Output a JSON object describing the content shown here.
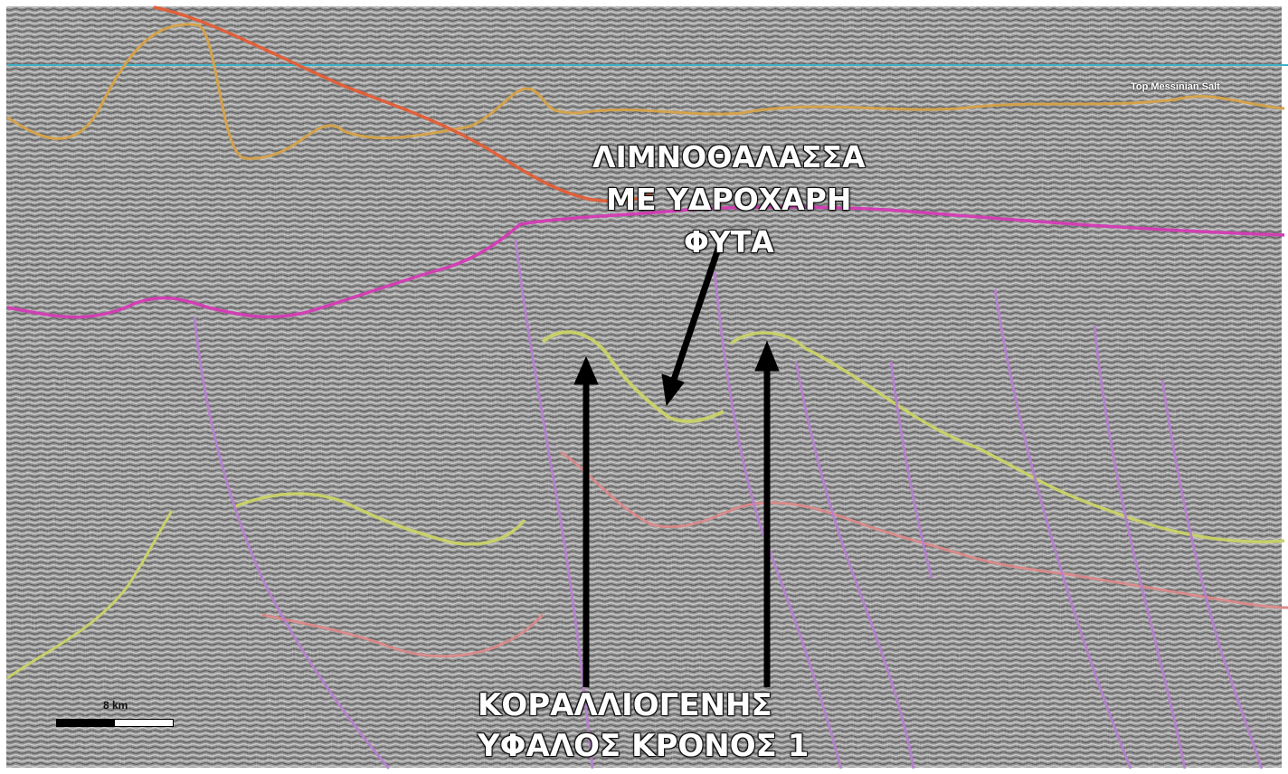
{
  "image": {
    "type": "seismic-section",
    "background_color": "#8a8a8a",
    "horizon_colors": {
      "sea_level_line": "#3fb0c8",
      "upper_horizon": "#d4a24a",
      "red_horizon": "#e0603a",
      "magenta_horizon": "#d23fb4",
      "yellow_green_horizon": "#c8d06a",
      "pink_horizon": "#d88a8a",
      "fault_lines": "#b77fd0"
    }
  },
  "labels": {
    "top_salt": "Top Messinian Salt",
    "lagoon_line1": "ΛΙΜΝΟΘΑΛΑΣΣΑ",
    "lagoon_line2": "ΜΕ ΥΔΡΟΧΑΡΗ",
    "lagoon_line3": "ΦΥΤΑ",
    "reef_line1": "ΚΟΡΑΛΛΙΟΓΕΝΗΣ",
    "reef_line2": "ΥΦΑΛΟΣ ΚΡΟΝΟΣ 1",
    "scale": "8 km"
  },
  "icons": {
    "arrow": "arrow-up-icon"
  }
}
